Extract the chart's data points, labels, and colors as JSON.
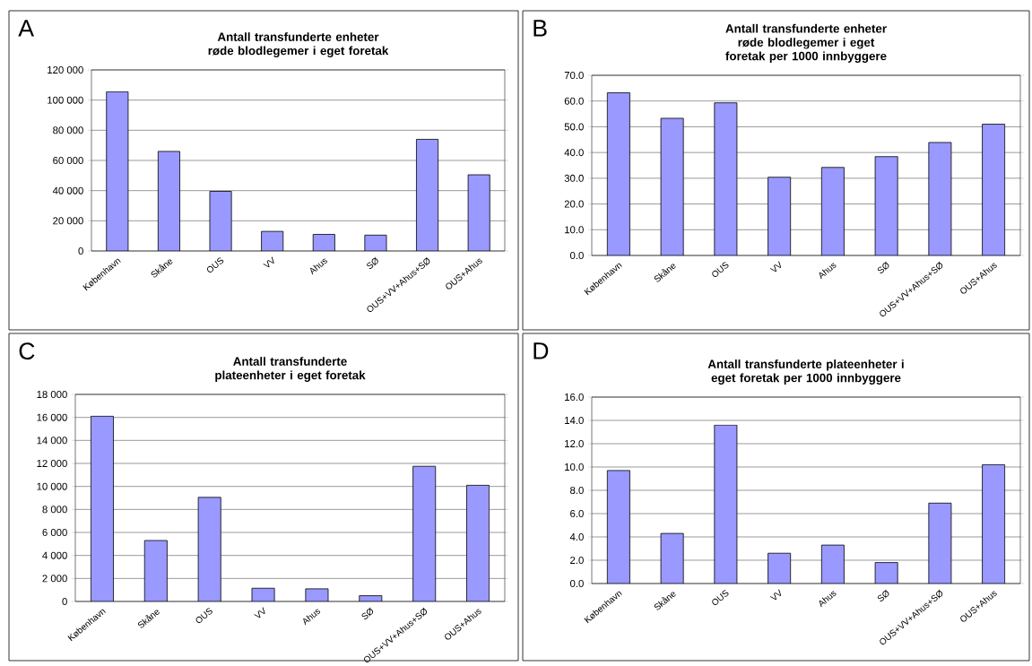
{
  "chart_data": [
    {
      "type": "bar",
      "title": "Antall transfunderte enheter røde blodlegemer i eget foretak",
      "annotations": [
        "A"
      ],
      "categories": [
        "København",
        "Skåne",
        "OUS",
        "VV",
        "Ahus",
        "SØ",
        "OUS+VV+Ahus+SØ",
        "OUS+Ahus"
      ],
      "values": [
        105500,
        66000,
        39500,
        13000,
        11000,
        10500,
        74000,
        50500
      ],
      "color": "#9999ff",
      "ylim": [
        0,
        120000
      ],
      "yticks": [
        0,
        {
          "value": 20000,
          "label": "20 000"
        },
        {
          "value": 40000,
          "label": "40 000"
        },
        {
          "value": 60000,
          "label": "60 000"
        },
        {
          "value": 80000,
          "label": "80 000"
        },
        {
          "value": 100000,
          "label": "100 000"
        },
        {
          "value": 120000,
          "label": "120 000"
        }
      ],
      "grid": "y"
    },
    {
      "type": "bar",
      "title": "Antall transfunderte enheter røde blodlegemer i eget foretak per 1000 innbyggere",
      "annotations": [
        "B"
      ],
      "categories": [
        "København",
        "Skåne",
        "OUS",
        "VV",
        "Ahus",
        "SØ",
        "OUS+VV+Ahus+SØ",
        "OUS+Ahus"
      ],
      "values": [
        63.2,
        53.3,
        59.3,
        30.4,
        34.2,
        38.4,
        43.9,
        51.0
      ],
      "color": "#9999ff",
      "ylim": [
        0,
        70
      ],
      "yticks": [
        {
          "value": 0,
          "label": "0.0"
        },
        {
          "value": 10,
          "label": "10.0"
        },
        {
          "value": 20,
          "label": "20.0"
        },
        {
          "value": 30,
          "label": "30.0"
        },
        {
          "value": 40,
          "label": "40.0"
        },
        {
          "value": 50,
          "label": "50.0"
        },
        {
          "value": 60,
          "label": "60.0"
        },
        {
          "value": 70,
          "label": "70.0"
        }
      ],
      "grid": "y"
    },
    {
      "type": "bar",
      "title": "Antall transfunderte plateenheter i eget foretak",
      "annotations": [
        "C"
      ],
      "categories": [
        "København",
        "Skåne",
        "OUS",
        "VV",
        "Ahus",
        "SØ",
        "OUS+VV+Ahus+SØ",
        "OUS+Ahus"
      ],
      "values": [
        16100,
        5300,
        9050,
        1150,
        1100,
        500,
        11750,
        10100
      ],
      "color": "#9999ff",
      "ylim": [
        0,
        18000
      ],
      "yticks": [
        0,
        {
          "value": 2000,
          "label": "2 000"
        },
        {
          "value": 4000,
          "label": "4 000"
        },
        {
          "value": 6000,
          "label": "6 000"
        },
        {
          "value": 8000,
          "label": "8 000"
        },
        {
          "value": 10000,
          "label": "10 000"
        },
        {
          "value": 12000,
          "label": "12 000"
        },
        {
          "value": 14000,
          "label": "14 000"
        },
        {
          "value": 16000,
          "label": "16 000"
        },
        {
          "value": 18000,
          "label": "18 000"
        }
      ],
      "grid": "y"
    },
    {
      "type": "bar",
      "title": "Antall transfunderte plateenheter i eget foretak per 1000 innbyggere",
      "annotations": [
        "D"
      ],
      "categories": [
        "København",
        "Skåne",
        "OUS",
        "VV",
        "Ahus",
        "SØ",
        "OUS+VV+Ahus+SØ",
        "OUS+Ahus"
      ],
      "values": [
        9.7,
        4.3,
        13.6,
        2.6,
        3.3,
        1.8,
        6.9,
        10.2
      ],
      "color": "#9999ff",
      "ylim": [
        0,
        16
      ],
      "yticks": [
        {
          "value": 0,
          "label": "0.0"
        },
        {
          "value": 2,
          "label": "2.0"
        },
        {
          "value": 4,
          "label": "4.0"
        },
        {
          "value": 6,
          "label": "6.0"
        },
        {
          "value": 8,
          "label": "8.0"
        },
        {
          "value": 10,
          "label": "10.0"
        },
        {
          "value": 12,
          "label": "12.0"
        },
        {
          "value": 14,
          "label": "14.0"
        },
        {
          "value": 16,
          "label": "16.0"
        }
      ],
      "grid": "y"
    }
  ]
}
